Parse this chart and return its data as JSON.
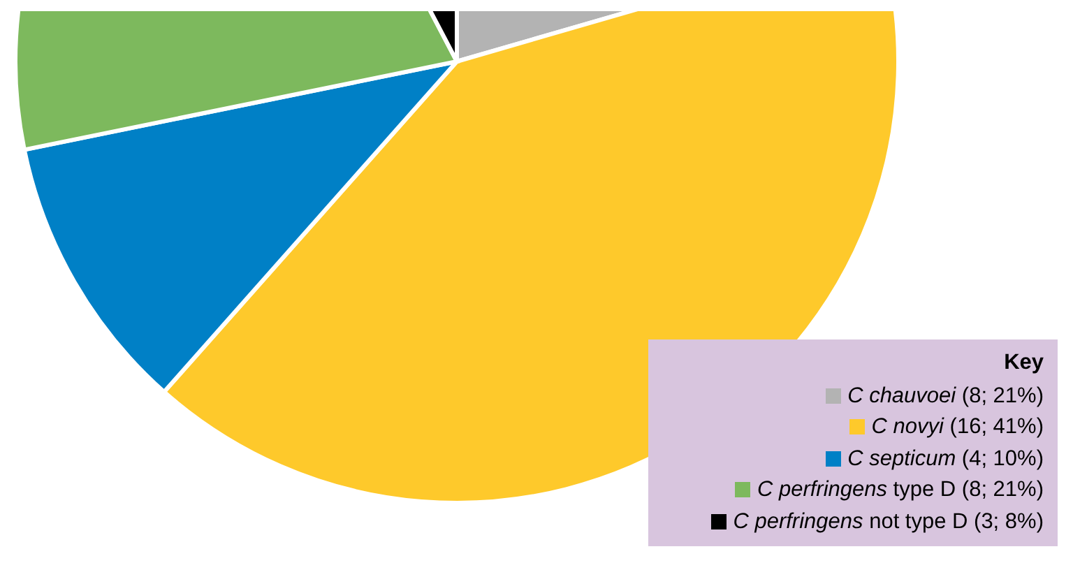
{
  "chart_data": {
    "type": "pie",
    "legend_title": "Key",
    "categories": [
      "C chauvoei (8; 21%)",
      "C novyi (16; 41%)",
      "C septicum (4; 10%)",
      "C perfringens type D (8; 21%)",
      "C perfringens not type D (3; 8%)"
    ],
    "values": [
      8,
      16,
      4,
      8,
      3
    ],
    "colors": [
      "#b3b3b3",
      "#fec92b",
      "#0080c6",
      "#7db95d",
      "#000000"
    ],
    "legend": "bottom right"
  }
}
